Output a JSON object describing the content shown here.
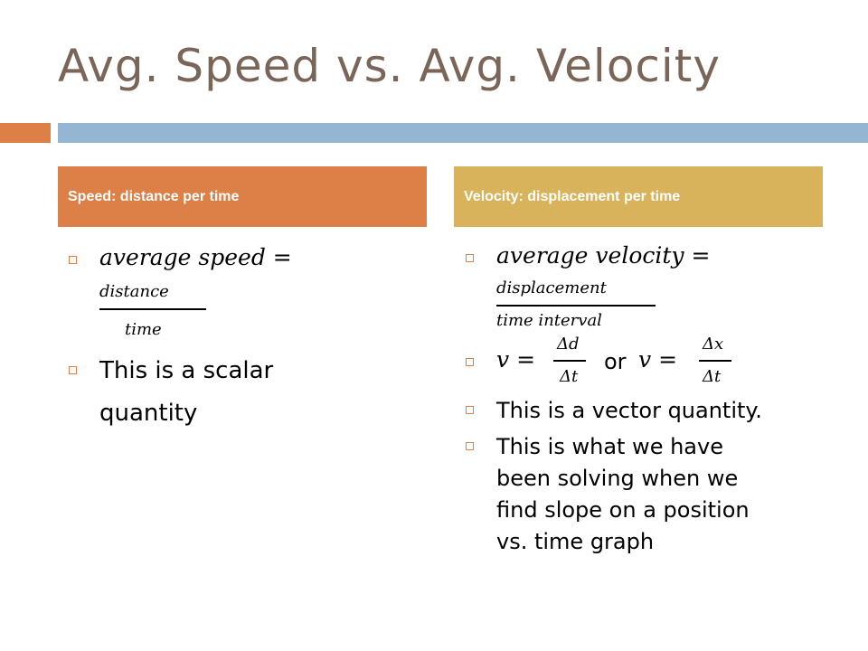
{
  "title": "Avg. Speed vs. Avg. Velocity",
  "columns": {
    "left": {
      "header": "Speed:  distance per time",
      "formula_lhs": "average speed =",
      "formula_num": "distance",
      "formula_den": "time",
      "bullet2_line1": "This is a scalar",
      "bullet2_line2": "quantity"
    },
    "right": {
      "header": "Velocity:  displacement per time",
      "formula_lhs": "average velocity =",
      "formula_num": "displacement",
      "formula_den": "time interval",
      "v_eq1": "v =",
      "frac1_num": "Δd",
      "frac1_den": "Δt",
      "or_text": "or",
      "v_eq2": "v =",
      "frac2_num": "Δx",
      "frac2_den": "Δt",
      "bullet3": "This is a vector quantity.",
      "bullet4_lines": [
        "This is what we have",
        "been solving when we",
        "find slope on a position",
        "vs. time graph"
      ]
    }
  },
  "colors": {
    "title": "#7b6458",
    "orange": "#dd8047",
    "blue": "#94b6d2",
    "gold": "#d9b35c"
  }
}
